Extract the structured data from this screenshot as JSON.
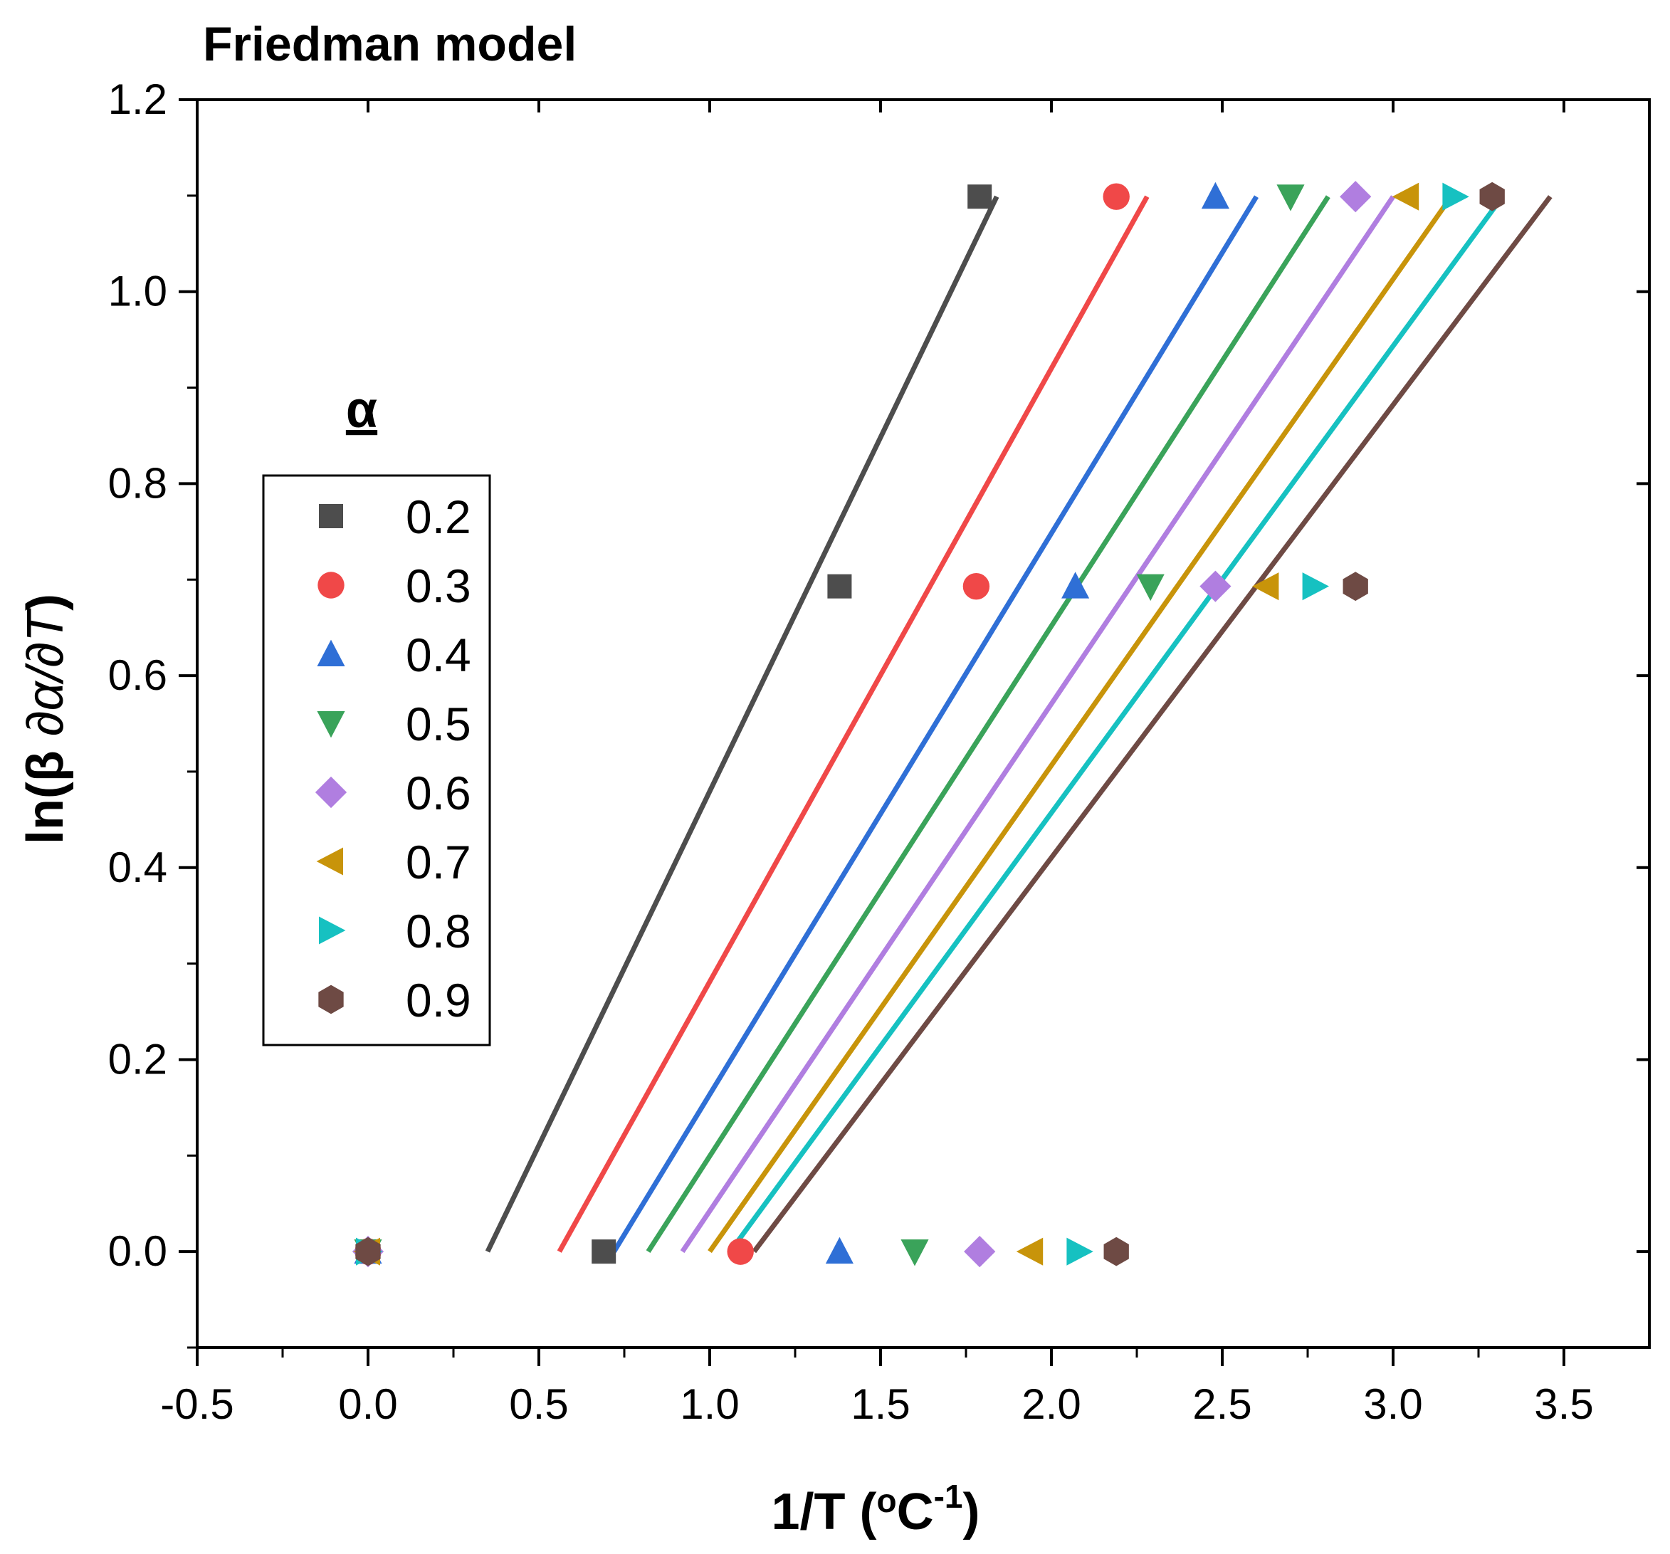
{
  "chart_data": {
    "type": "scatter",
    "title": "Friedman model",
    "xlabel_main": "1/T (",
    "xlabel_unit_base": "o",
    "xlabel_unit": "C",
    "xlabel_exp": "-1",
    "xlabel_close": ")",
    "ylabel_prefix": "ln(β ",
    "ylabel_italic": "∂α/∂T",
    "ylabel_suffix": ")",
    "xlim": [
      -0.5,
      3.75
    ],
    "ylim": [
      -0.1,
      1.2
    ],
    "xticks": [
      -0.5,
      0.0,
      0.5,
      1.0,
      1.5,
      2.0,
      2.5,
      3.0,
      3.5
    ],
    "xtick_labels": [
      "-0.5",
      "0.0",
      "0.5",
      "1.0",
      "1.5",
      "2.0",
      "2.5",
      "3.0",
      "3.5"
    ],
    "yticks": [
      0.0,
      0.2,
      0.4,
      0.6,
      0.8,
      1.0,
      1.2
    ],
    "ytick_labels": [
      "0.0",
      "0.2",
      "0.4",
      "0.6",
      "0.8",
      "1.0",
      "1.2"
    ],
    "legend_title": "α",
    "legend_position": "center-left",
    "series": [
      {
        "name": "0.2",
        "color": "#4d4d4d",
        "marker": "square",
        "x": [
          0.0,
          0.69,
          1.38,
          1.79
        ],
        "y": [
          0.0,
          0.0,
          0.693,
          1.099
        ],
        "fit_x": [
          0.35,
          1.84
        ],
        "fit_y": [
          0.0,
          1.099
        ]
      },
      {
        "name": "0.3",
        "color": "#f04848",
        "marker": "circle",
        "x": [
          0.0,
          1.09,
          1.78,
          2.19
        ],
        "y": [
          0.0,
          0.0,
          0.693,
          1.099
        ],
        "fit_x": [
          0.56,
          2.28
        ],
        "fit_y": [
          0.0,
          1.099
        ]
      },
      {
        "name": "0.4",
        "color": "#2f6fd6",
        "marker": "triangle-up",
        "x": [
          0.0,
          1.38,
          2.07,
          2.48
        ],
        "y": [
          0.0,
          0.0,
          0.693,
          1.099
        ],
        "fit_x": [
          0.72,
          2.6
        ],
        "fit_y": [
          0.0,
          1.099
        ]
      },
      {
        "name": "0.5",
        "color": "#3aa35a",
        "marker": "triangle-down",
        "x": [
          0.0,
          1.6,
          2.29,
          2.7
        ],
        "y": [
          0.0,
          0.0,
          0.693,
          1.099
        ],
        "fit_x": [
          0.82,
          2.81
        ],
        "fit_y": [
          0.0,
          1.099
        ]
      },
      {
        "name": "0.6",
        "color": "#b07ee0",
        "marker": "diamond",
        "x": [
          0.0,
          1.79,
          2.48,
          2.89
        ],
        "y": [
          0.0,
          0.0,
          0.693,
          1.099
        ],
        "fit_x": [
          0.92,
          3.0
        ],
        "fit_y": [
          0.0,
          1.099
        ]
      },
      {
        "name": "0.7",
        "color": "#c8940a",
        "marker": "triangle-left",
        "x": [
          0.0,
          1.94,
          2.63,
          3.04
        ],
        "y": [
          0.0,
          0.0,
          0.693,
          1.099
        ],
        "fit_x": [
          1.0,
          3.17
        ],
        "fit_y": [
          0.0,
          1.099
        ]
      },
      {
        "name": "0.8",
        "color": "#16c1c1",
        "marker": "triangle-right",
        "x": [
          0.0,
          2.08,
          2.77,
          3.18
        ],
        "y": [
          0.0,
          0.0,
          0.693,
          1.099
        ],
        "fit_x": [
          1.06,
          3.32
        ],
        "fit_y": [
          0.0,
          1.099
        ]
      },
      {
        "name": "0.9",
        "color": "#6e4a44",
        "marker": "hexagon",
        "x": [
          0.0,
          2.19,
          2.89,
          3.29
        ],
        "y": [
          0.0,
          0.0,
          0.693,
          1.099
        ],
        "fit_x": [
          1.13,
          3.46
        ],
        "fit_y": [
          0.0,
          1.099
        ]
      }
    ]
  }
}
